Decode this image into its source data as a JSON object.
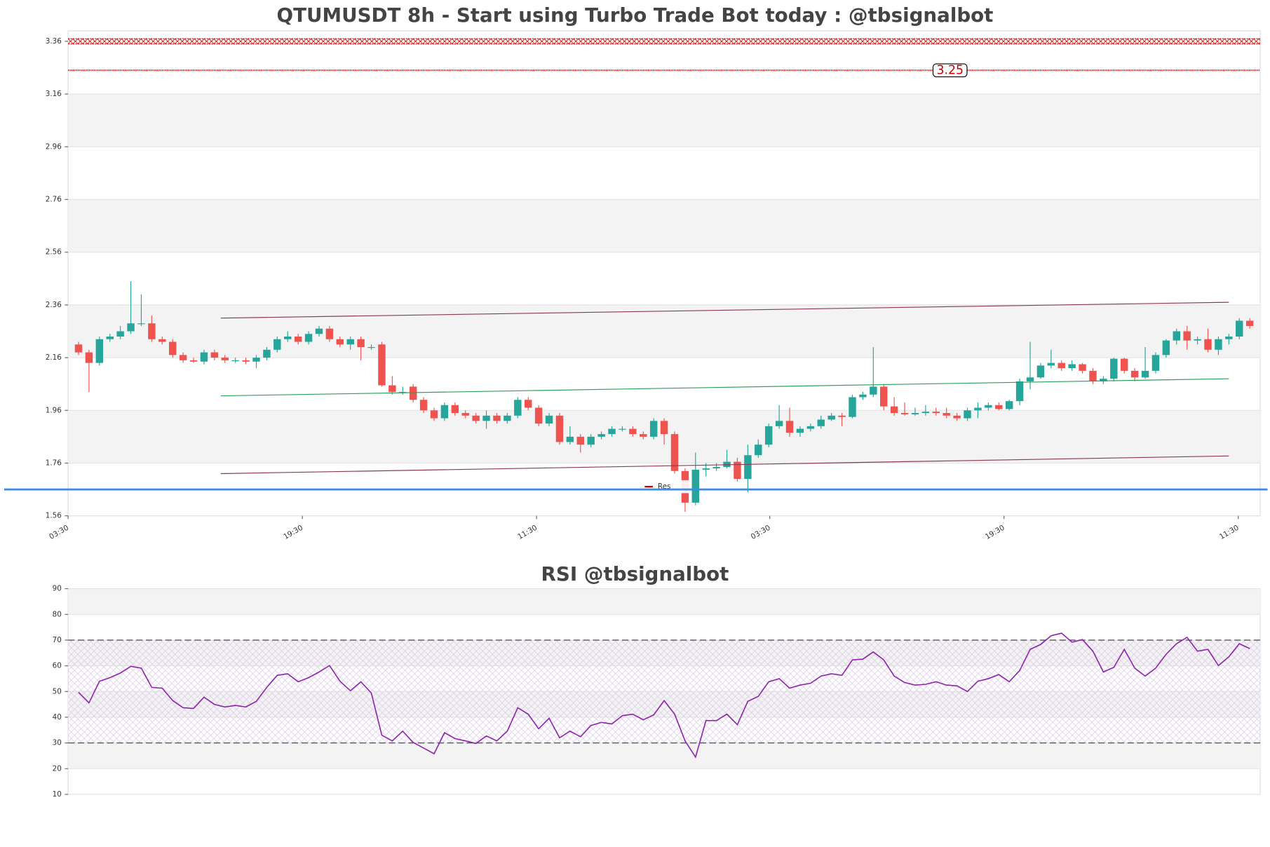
{
  "chart_data": [
    {
      "type": "candlestick",
      "title": "QTUMUSDT 8h - Start using Turbo Trade Bot today : @tbsignalbot",
      "xlim": [
        -1,
        113
      ],
      "xticks": [
        {
          "value": -1,
          "label": "03:30"
        },
        {
          "value": 21.4,
          "label": "19:30"
        },
        {
          "value": 43.8,
          "label": "11:30"
        },
        {
          "value": 66.1,
          "label": "03:30"
        },
        {
          "value": 88.5,
          "label": "19:30"
        },
        {
          "value": 110.9,
          "label": "11:30"
        }
      ],
      "ylim": [
        1.56,
        3.4
      ],
      "yticks": [
        3.36,
        3.16,
        2.96,
        2.76,
        2.56,
        2.36,
        2.16,
        1.96,
        1.76,
        1.56
      ],
      "grid": true,
      "up_color": "#26a69a",
      "down_color": "#ef5350",
      "open": [
        2.21,
        2.18,
        2.14,
        2.23,
        2.24,
        2.26,
        2.29,
        2.29,
        2.23,
        2.22,
        2.17,
        2.15,
        2.145,
        2.18,
        2.16,
        2.15,
        2.15,
        2.145,
        2.16,
        2.19,
        2.23,
        2.24,
        2.22,
        2.25,
        2.27,
        2.23,
        2.21,
        2.23,
        2.2,
        2.21,
        2.055,
        2.03,
        2.05,
        2.0,
        1.96,
        1.93,
        1.98,
        1.95,
        1.94,
        1.92,
        1.94,
        1.92,
        1.94,
        2.0,
        1.97,
        1.91,
        1.94,
        1.84,
        1.86,
        1.83,
        1.86,
        1.87,
        1.89,
        1.89,
        1.87,
        1.86,
        1.92,
        1.87,
        1.73,
        1.61,
        1.735,
        1.74,
        1.745,
        1.765,
        1.7,
        1.79,
        1.83,
        1.9,
        1.92,
        1.875,
        1.89,
        1.9,
        1.925,
        1.94,
        1.935,
        2.01,
        2.02,
        2.05,
        1.975,
        1.95,
        1.945,
        1.95,
        1.955,
        1.95,
        1.94,
        1.93,
        1.96,
        1.97,
        1.98,
        1.965,
        1.995,
        2.07,
        2.085,
        2.13,
        2.14,
        2.12,
        2.135,
        2.11,
        2.07,
        2.08,
        2.156,
        2.11,
        2.085,
        2.11,
        2.17,
        2.225,
        2.26,
        2.225,
        2.23,
        2.19,
        2.23,
        2.24,
        2.3
      ],
      "high": [
        2.22,
        2.19,
        2.24,
        2.25,
        2.28,
        2.45,
        2.4,
        2.32,
        2.24,
        2.23,
        2.18,
        2.16,
        2.19,
        2.19,
        2.17,
        2.16,
        2.16,
        2.17,
        2.2,
        2.24,
        2.26,
        2.25,
        2.26,
        2.28,
        2.28,
        2.24,
        2.24,
        2.24,
        2.21,
        2.22,
        2.09,
        2.05,
        2.06,
        2.01,
        1.97,
        1.99,
        1.99,
        1.96,
        1.95,
        1.96,
        1.95,
        1.95,
        2.01,
        2.01,
        1.98,
        1.95,
        1.95,
        1.9,
        1.87,
        1.87,
        1.88,
        1.9,
        1.9,
        1.9,
        1.88,
        1.93,
        1.93,
        1.88,
        1.74,
        1.8,
        1.76,
        1.76,
        1.81,
        1.78,
        1.83,
        1.85,
        1.91,
        1.98,
        1.97,
        1.9,
        1.91,
        1.94,
        1.95,
        1.95,
        2.02,
        2.03,
        2.2,
        2.06,
        2.01,
        1.99,
        1.97,
        1.98,
        1.97,
        1.97,
        1.95,
        1.97,
        1.99,
        1.99,
        1.99,
        2.0,
        2.08,
        2.22,
        2.14,
        2.19,
        2.15,
        2.15,
        2.14,
        2.12,
        2.09,
        2.16,
        2.16,
        2.12,
        2.2,
        2.18,
        2.23,
        2.27,
        2.28,
        2.24,
        2.27,
        2.24,
        2.25,
        2.31,
        2.31
      ],
      "low": [
        2.17,
        2.03,
        2.13,
        2.22,
        2.23,
        2.25,
        2.28,
        2.22,
        2.21,
        2.16,
        2.14,
        2.14,
        2.135,
        2.15,
        2.14,
        2.14,
        2.135,
        2.12,
        2.15,
        2.18,
        2.22,
        2.21,
        2.21,
        2.24,
        2.22,
        2.2,
        2.19,
        2.15,
        2.19,
        2.05,
        2.02,
        2.02,
        1.99,
        1.95,
        1.92,
        1.92,
        1.94,
        1.93,
        1.91,
        1.89,
        1.91,
        1.91,
        1.93,
        1.96,
        1.9,
        1.9,
        1.83,
        1.83,
        1.8,
        1.82,
        1.85,
        1.86,
        1.88,
        1.86,
        1.85,
        1.85,
        1.83,
        1.72,
        1.575,
        1.6,
        1.71,
        1.73,
        1.74,
        1.69,
        1.65,
        1.78,
        1.82,
        1.89,
        1.86,
        1.86,
        1.88,
        1.89,
        1.92,
        1.9,
        1.93,
        2.0,
        2.01,
        1.96,
        1.94,
        1.94,
        1.94,
        1.94,
        1.94,
        1.93,
        1.92,
        1.92,
        1.93,
        1.96,
        1.96,
        1.96,
        1.98,
        2.04,
        2.08,
        2.12,
        2.11,
        2.11,
        2.1,
        2.06,
        2.06,
        2.07,
        2.1,
        2.07,
        2.08,
        2.1,
        2.16,
        2.21,
        2.19,
        2.21,
        2.18,
        2.17,
        2.21,
        2.23,
        2.27
      ],
      "close": [
        2.18,
        2.14,
        2.23,
        2.24,
        2.26,
        2.29,
        2.29,
        2.23,
        2.22,
        2.17,
        2.15,
        2.145,
        2.18,
        2.16,
        2.15,
        2.15,
        2.145,
        2.16,
        2.19,
        2.23,
        2.24,
        2.22,
        2.25,
        2.27,
        2.23,
        2.21,
        2.23,
        2.2,
        2.2,
        2.055,
        2.03,
        2.03,
        2.0,
        1.96,
        1.93,
        1.98,
        1.95,
        1.94,
        1.92,
        1.94,
        1.92,
        1.94,
        2.0,
        1.97,
        1.91,
        1.94,
        1.84,
        1.86,
        1.83,
        1.86,
        1.87,
        1.89,
        1.89,
        1.87,
        1.86,
        1.92,
        1.87,
        1.73,
        1.61,
        1.735,
        1.74,
        1.745,
        1.765,
        1.7,
        1.79,
        1.83,
        1.9,
        1.92,
        1.875,
        1.89,
        1.9,
        1.925,
        1.94,
        1.935,
        2.01,
        2.02,
        2.05,
        1.975,
        1.95,
        1.945,
        1.95,
        1.955,
        1.95,
        1.94,
        1.93,
        1.96,
        1.97,
        1.98,
        1.965,
        1.995,
        2.07,
        2.085,
        2.13,
        2.14,
        2.12,
        2.135,
        2.11,
        2.07,
        2.08,
        2.156,
        2.11,
        2.085,
        2.11,
        2.17,
        2.225,
        2.26,
        2.225,
        2.23,
        2.19,
        2.23,
        2.24,
        2.3,
        2.28
      ],
      "lines": [
        {
          "x": [
            13.6,
            110
          ],
          "y": [
            2.31,
            2.37
          ],
          "color": "#8b3a4a"
        },
        {
          "x": [
            13.6,
            110
          ],
          "y": [
            2.015,
            2.08
          ],
          "color": "#2e9e5b"
        },
        {
          "x": [
            13.6,
            110
          ],
          "y": [
            1.72,
            1.787
          ],
          "color": "#8b3a4a"
        }
      ],
      "hlines": [
        {
          "name": "Res",
          "value": 3.25,
          "color": "#cc0000",
          "label": 3.25
        },
        {
          "value": 1.66,
          "color": "#3b8fe0"
        }
      ],
      "band": {
        "range": [
          3.35,
          3.37
        ],
        "color": "#cc0000"
      },
      "legend": "lower center"
    },
    {
      "type": "line",
      "title": "RSI @tbsignalbot",
      "color": "#8e24aa",
      "xlim": [
        -1,
        113
      ],
      "ylim": [
        10,
        90
      ],
      "yticks": [
        10,
        20,
        30,
        40,
        50,
        60,
        70,
        80,
        90
      ],
      "grid": true,
      "values": [
        49.7,
        45.6,
        54,
        55.4,
        57.2,
        59.8,
        59.1,
        51.6,
        51.3,
        46.5,
        43.7,
        43.4,
        47.8,
        45,
        44,
        44.6,
        44,
        46.2,
        51.6,
        56.3,
        56.9,
        53.8,
        55.4,
        57.6,
        60.1,
        54,
        50.3,
        53.8,
        49.4,
        33,
        30.8,
        34.6,
        30.2,
        28,
        25.8,
        34,
        31.7,
        30.8,
        29.8,
        32.7,
        30.8,
        34.6,
        43.7,
        41.2,
        35.5,
        39.6,
        32,
        34.6,
        32.4,
        36.8,
        38,
        37.4,
        40.6,
        41.2,
        39,
        40.9,
        46.5,
        41.2,
        30.8,
        24.5,
        38.7,
        38.7,
        41.2,
        37.1,
        46.2,
        48.1,
        53.8,
        55,
        51.3,
        52.5,
        53.2,
        56,
        56.9,
        56.3,
        62.3,
        62.6,
        65.4,
        62.3,
        56,
        53.5,
        52.5,
        52.8,
        53.8,
        52.5,
        52.2,
        50,
        54,
        55,
        56.6,
        53.8,
        58.2,
        66.4,
        68.3,
        71.7,
        72.7,
        69.2,
        70.2,
        65.7,
        57.6,
        59.4,
        66.4,
        59.1,
        56,
        59.1,
        64.5,
        68.6,
        71.1,
        65.7,
        66.4,
        60.1,
        63.5,
        68.6,
        66.7
      ],
      "hlines": [
        {
          "value": 70,
          "color": "#555555"
        },
        {
          "value": 30,
          "color": "#555555"
        }
      ],
      "band": {
        "range": [
          30,
          70
        ],
        "color": "#b38fd0"
      }
    }
  ]
}
